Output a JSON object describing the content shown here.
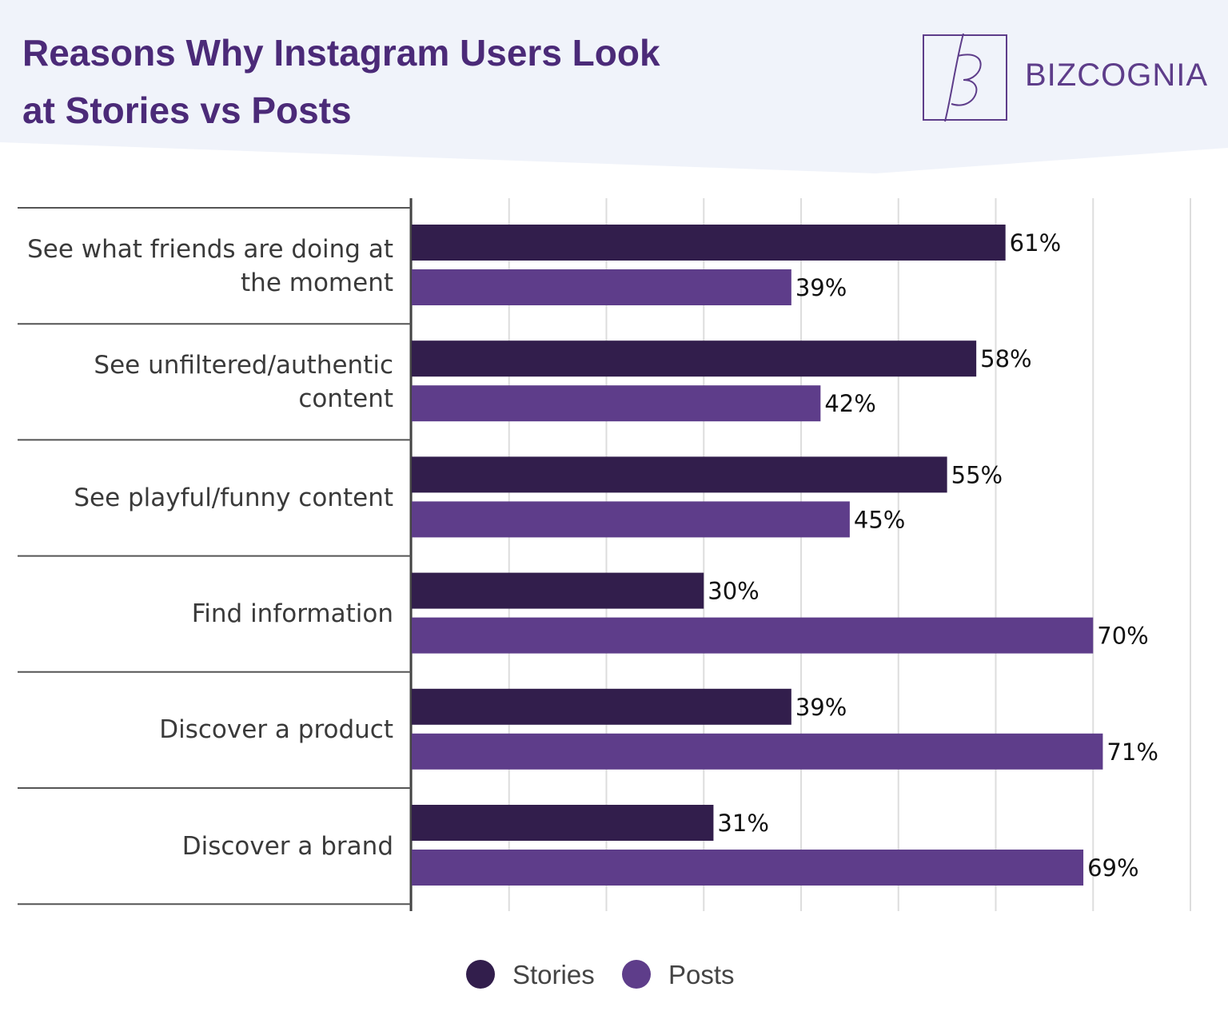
{
  "chart_data": {
    "type": "hbar",
    "title": "Reasons Why Instagram Users Look at Stories vs Posts",
    "brand": "BIZCOGNIA",
    "categories": [
      "See what friends are doing at the moment",
      "See unfiltered/authentic content",
      "See playful/funny content",
      "Find information",
      "Discover a product",
      "Discover a brand"
    ],
    "series": [
      {
        "name": "Stories",
        "color": "#321e4c",
        "values": [
          61,
          58,
          55,
          30,
          39,
          31
        ],
        "value_labels": [
          "61%",
          "58%",
          "55%",
          "30%",
          "39%",
          "31%"
        ]
      },
      {
        "name": "Posts",
        "color": "#5e3d8a",
        "values": [
          39,
          42,
          45,
          70,
          71,
          69
        ],
        "value_labels": [
          "39%",
          "42%",
          "45%",
          "70%",
          "71%",
          "69%"
        ]
      }
    ],
    "xlim": [
      0,
      80
    ],
    "xticks": [
      0,
      10,
      20,
      30,
      40,
      50,
      60,
      70,
      80
    ],
    "grid": true
  }
}
